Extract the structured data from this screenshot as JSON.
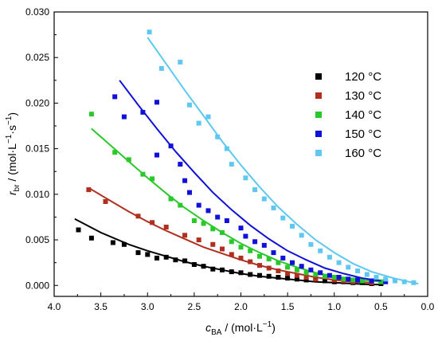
{
  "chart_data": {
    "type": "scatter",
    "xlabel": {
      "symbol": "c",
      "subscript": "BA",
      "unit": " / (mol·L",
      "exp": "−1",
      "close": ")"
    },
    "ylabel": {
      "symbol": "r",
      "subscript": "br",
      "unit": " / (mol·L",
      "exp1": "−1",
      "mid": "·s",
      "exp2": "−1",
      "close": ")"
    },
    "xlim": [
      4.0,
      0.0
    ],
    "ylim": [
      -0.0012,
      0.03
    ],
    "xticks": [
      "4.0",
      "3.5",
      "3.0",
      "2.5",
      "2.0",
      "1.5",
      "1.0",
      "0.5",
      "0.0"
    ],
    "yticks": [
      "0.000",
      "0.005",
      "0.010",
      "0.015",
      "0.020",
      "0.025",
      "0.030"
    ],
    "legend_position": "top-right",
    "series": [
      {
        "name": "120 °C",
        "color": "#000000",
        "points": [
          [
            3.74,
            0.0061
          ],
          [
            3.6,
            0.0052
          ],
          [
            3.37,
            0.0047
          ],
          [
            3.25,
            0.0045
          ],
          [
            3.1,
            0.0036
          ],
          [
            3.0,
            0.0034
          ],
          [
            2.9,
            0.003
          ],
          [
            2.8,
            0.0031
          ],
          [
            2.7,
            0.0028
          ],
          [
            2.6,
            0.0027
          ],
          [
            2.5,
            0.0023
          ],
          [
            2.4,
            0.0021
          ],
          [
            2.3,
            0.0018
          ],
          [
            2.2,
            0.0017
          ],
          [
            2.1,
            0.0015
          ],
          [
            2.0,
            0.0014
          ],
          [
            1.9,
            0.0012
          ],
          [
            1.8,
            0.0011
          ],
          [
            1.7,
            0.001
          ],
          [
            1.6,
            0.0009
          ],
          [
            1.5,
            0.0008
          ],
          [
            1.4,
            0.0007
          ],
          [
            1.3,
            0.0006
          ],
          [
            1.2,
            0.0006
          ],
          [
            1.1,
            0.0005
          ],
          [
            1.0,
            0.0004
          ],
          [
            0.9,
            0.0004
          ],
          [
            0.8,
            0.0003
          ],
          [
            0.7,
            0.0003
          ],
          [
            0.6,
            0.0002
          ],
          [
            0.5,
            0.0002
          ]
        ],
        "fit": [
          [
            3.78,
            0.0073
          ],
          [
            3.5,
            0.0058
          ],
          [
            3.2,
            0.0045
          ],
          [
            3.0,
            0.0038
          ],
          [
            2.8,
            0.0032
          ],
          [
            2.6,
            0.0026
          ],
          [
            2.4,
            0.0021
          ],
          [
            2.2,
            0.0017
          ],
          [
            2.0,
            0.0013
          ],
          [
            1.8,
            0.001
          ],
          [
            1.6,
            0.0008
          ],
          [
            1.4,
            0.0006
          ],
          [
            1.2,
            0.0004
          ],
          [
            1.0,
            0.0003
          ],
          [
            0.8,
            0.0002
          ],
          [
            0.6,
            0.0001
          ],
          [
            0.5,
            0.0001
          ]
        ]
      },
      {
        "name": "130 °C",
        "color": "#b03020",
        "points": [
          [
            3.63,
            0.0105
          ],
          [
            3.45,
            0.0092
          ],
          [
            3.1,
            0.0076
          ],
          [
            2.95,
            0.0069
          ],
          [
            2.8,
            0.0064
          ],
          [
            2.6,
            0.0055
          ],
          [
            2.45,
            0.005
          ],
          [
            2.3,
            0.0045
          ],
          [
            2.2,
            0.004
          ],
          [
            2.1,
            0.0034
          ],
          [
            2.0,
            0.003
          ],
          [
            1.9,
            0.0026
          ],
          [
            1.8,
            0.0022
          ],
          [
            1.7,
            0.0019
          ],
          [
            1.6,
            0.0016
          ],
          [
            1.5,
            0.0013
          ],
          [
            1.4,
            0.0011
          ],
          [
            1.3,
            0.0009
          ],
          [
            1.2,
            0.0007
          ],
          [
            1.0,
            0.0006
          ],
          [
            0.9,
            0.0005
          ],
          [
            0.8,
            0.0004
          ],
          [
            0.6,
            0.0003
          ]
        ],
        "fit": [
          [
            3.63,
            0.0107
          ],
          [
            3.4,
            0.0093
          ],
          [
            3.2,
            0.0081
          ],
          [
            3.0,
            0.007
          ],
          [
            2.8,
            0.006
          ],
          [
            2.6,
            0.0051
          ],
          [
            2.4,
            0.0042
          ],
          [
            2.2,
            0.0035
          ],
          [
            2.0,
            0.0028
          ],
          [
            1.8,
            0.0022
          ],
          [
            1.6,
            0.0017
          ],
          [
            1.4,
            0.0013
          ],
          [
            1.2,
            0.0009
          ],
          [
            1.0,
            0.0006
          ],
          [
            0.8,
            0.0004
          ],
          [
            0.6,
            0.0003
          ]
        ]
      },
      {
        "name": "140 °C",
        "color": "#2ac82a",
        "points": [
          [
            3.6,
            0.0188
          ],
          [
            3.35,
            0.0146
          ],
          [
            3.2,
            0.0138
          ],
          [
            3.05,
            0.0122
          ],
          [
            2.95,
            0.0117
          ],
          [
            2.75,
            0.0095
          ],
          [
            2.65,
            0.0088
          ],
          [
            2.5,
            0.0071
          ],
          [
            2.4,
            0.0068
          ],
          [
            2.3,
            0.0062
          ],
          [
            2.2,
            0.0058
          ],
          [
            2.1,
            0.0048
          ],
          [
            2.0,
            0.0042
          ],
          [
            1.9,
            0.0038
          ],
          [
            1.8,
            0.0032
          ],
          [
            1.7,
            0.0029
          ],
          [
            1.6,
            0.0025
          ],
          [
            1.5,
            0.002
          ],
          [
            1.4,
            0.0017
          ],
          [
            1.3,
            0.0014
          ],
          [
            1.2,
            0.0012
          ],
          [
            1.1,
            0.001
          ],
          [
            1.0,
            0.0009
          ],
          [
            0.9,
            0.0007
          ],
          [
            0.8,
            0.0006
          ],
          [
            0.7,
            0.0005
          ],
          [
            0.5,
            0.0004
          ]
        ],
        "fit": [
          [
            3.6,
            0.0172
          ],
          [
            3.4,
            0.0154
          ],
          [
            3.2,
            0.0136
          ],
          [
            3.0,
            0.0118
          ],
          [
            2.8,
            0.0101
          ],
          [
            2.6,
            0.0085
          ],
          [
            2.4,
            0.0071
          ],
          [
            2.2,
            0.0058
          ],
          [
            2.0,
            0.0046
          ],
          [
            1.8,
            0.0036
          ],
          [
            1.6,
            0.0027
          ],
          [
            1.4,
            0.002
          ],
          [
            1.2,
            0.0014
          ],
          [
            1.0,
            0.001
          ],
          [
            0.8,
            0.0007
          ],
          [
            0.6,
            0.0005
          ],
          [
            0.5,
            0.0004
          ]
        ]
      },
      {
        "name": "150 °C",
        "color": "#1010d8",
        "points": [
          [
            3.35,
            0.0207
          ],
          [
            3.25,
            0.0185
          ],
          [
            3.05,
            0.019
          ],
          [
            2.9,
            0.0201
          ],
          [
            2.9,
            0.0143
          ],
          [
            2.75,
            0.0153
          ],
          [
            2.65,
            0.0133
          ],
          [
            2.6,
            0.0115
          ],
          [
            2.55,
            0.0102
          ],
          [
            2.45,
            0.0088
          ],
          [
            2.35,
            0.0082
          ],
          [
            2.25,
            0.0075
          ],
          [
            2.15,
            0.0071
          ],
          [
            2.0,
            0.0063
          ],
          [
            1.95,
            0.0054
          ],
          [
            1.85,
            0.0048
          ],
          [
            1.75,
            0.0044
          ],
          [
            1.65,
            0.0036
          ],
          [
            1.55,
            0.003
          ],
          [
            1.45,
            0.0025
          ],
          [
            1.35,
            0.0021
          ],
          [
            1.25,
            0.0017
          ],
          [
            1.15,
            0.0014
          ],
          [
            1.05,
            0.0011
          ],
          [
            0.95,
            0.0009
          ],
          [
            0.85,
            0.0007
          ],
          [
            0.75,
            0.0006
          ],
          [
            0.6,
            0.0005
          ],
          [
            0.45,
            0.0004
          ]
        ],
        "fit": [
          [
            3.3,
            0.0225
          ],
          [
            3.1,
            0.0198
          ],
          [
            2.9,
            0.0172
          ],
          [
            2.7,
            0.0147
          ],
          [
            2.5,
            0.0124
          ],
          [
            2.3,
            0.0102
          ],
          [
            2.1,
            0.0083
          ],
          [
            1.9,
            0.0066
          ],
          [
            1.7,
            0.0051
          ],
          [
            1.5,
            0.0038
          ],
          [
            1.3,
            0.0028
          ],
          [
            1.1,
            0.0019
          ],
          [
            0.9,
            0.0013
          ],
          [
            0.7,
            0.0008
          ],
          [
            0.5,
            0.0005
          ]
        ]
      },
      {
        "name": "160 °C",
        "color": "#60c8f0",
        "points": [
          [
            2.98,
            0.0278
          ],
          [
            2.85,
            0.0238
          ],
          [
            2.65,
            0.0245
          ],
          [
            2.55,
            0.0198
          ],
          [
            2.45,
            0.0178
          ],
          [
            2.35,
            0.0185
          ],
          [
            2.25,
            0.0163
          ],
          [
            2.15,
            0.015
          ],
          [
            2.1,
            0.0133
          ],
          [
            1.95,
            0.0118
          ],
          [
            1.85,
            0.0105
          ],
          [
            1.75,
            0.0095
          ],
          [
            1.65,
            0.0085
          ],
          [
            1.55,
            0.0074
          ],
          [
            1.45,
            0.0065
          ],
          [
            1.35,
            0.0055
          ],
          [
            1.25,
            0.0045
          ],
          [
            1.15,
            0.0038
          ],
          [
            1.05,
            0.0031
          ],
          [
            0.95,
            0.0025
          ],
          [
            0.85,
            0.002
          ],
          [
            0.75,
            0.0016
          ],
          [
            0.65,
            0.0012
          ],
          [
            0.55,
            0.0009
          ],
          [
            0.45,
            0.0007
          ],
          [
            0.35,
            0.0005
          ],
          [
            0.25,
            0.0004
          ],
          [
            0.15,
            0.0003
          ]
        ],
        "fit": [
          [
            3.0,
            0.0272
          ],
          [
            2.8,
            0.0243
          ],
          [
            2.6,
            0.0214
          ],
          [
            2.4,
            0.0186
          ],
          [
            2.2,
            0.0158
          ],
          [
            2.0,
            0.0132
          ],
          [
            1.8,
            0.0108
          ],
          [
            1.6,
            0.0086
          ],
          [
            1.4,
            0.0067
          ],
          [
            1.2,
            0.005
          ],
          [
            1.0,
            0.0036
          ],
          [
            0.8,
            0.0024
          ],
          [
            0.6,
            0.0015
          ],
          [
            0.4,
            0.0009
          ],
          [
            0.2,
            0.0004
          ],
          [
            0.1,
            0.0002
          ]
        ]
      }
    ]
  }
}
